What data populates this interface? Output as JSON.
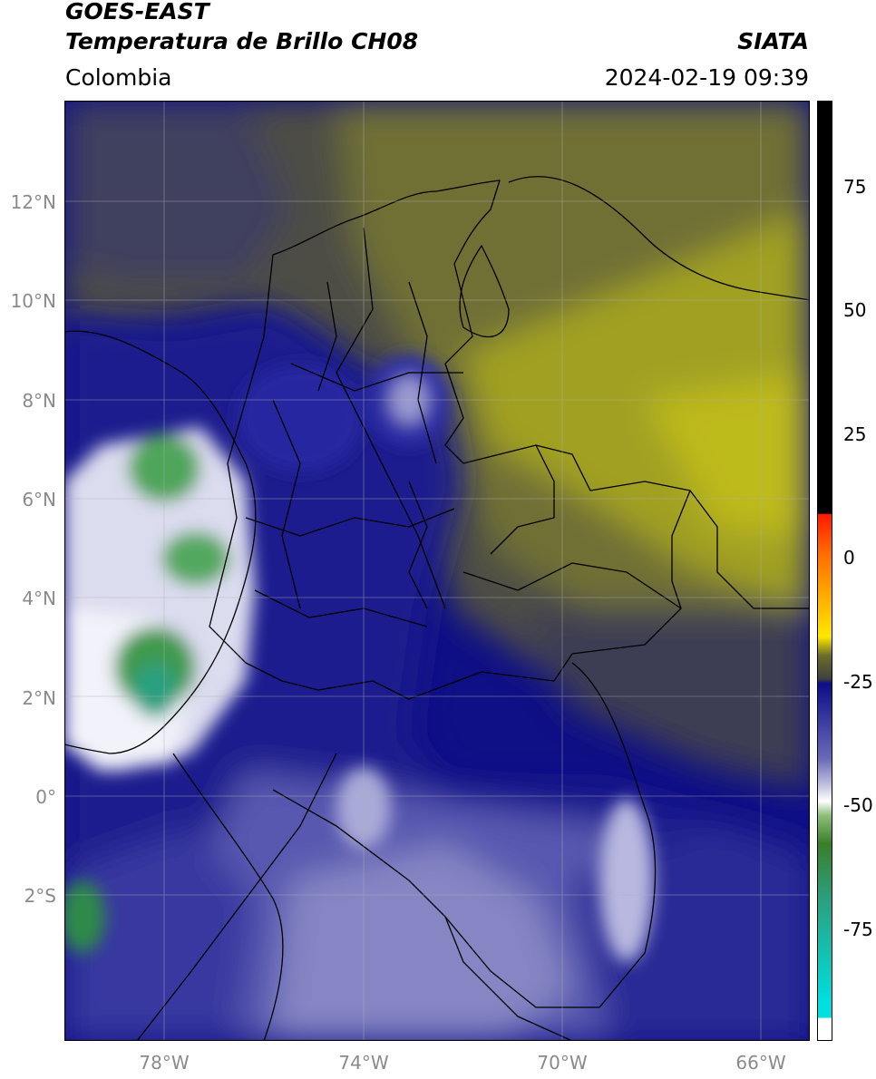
{
  "header": {
    "title_line1": "GOES-EAST",
    "title_line2": "Temperatura de Brillo CH08",
    "brand": "SIATA",
    "region": "Colombia",
    "datetime": "2024-02-19 09:39"
  },
  "map": {
    "lat_ticks": [
      "12°N",
      "10°N",
      "8°N",
      "6°N",
      "4°N",
      "2°N",
      "0°",
      "2°S"
    ],
    "lon_ticks": [
      "78°W",
      "74°W",
      "70°W",
      "66°W"
    ],
    "colors": {
      "cold_deep_blue": "#0d0d88",
      "mid_blue": "#4a4aa8",
      "light_lavender": "#aaaad6",
      "white": "#ffffff",
      "green": "#3f9a4e",
      "dark_gray": "#454545",
      "olive": "#8f8f2a",
      "yellow_olive": "#bbb81c",
      "border": "#000000",
      "grid": "#b0b0b0"
    }
  },
  "colorbar": {
    "tick_labels": [
      "75",
      "50",
      "25",
      "0",
      "-25",
      "-50",
      "-75"
    ],
    "colors": [
      "#000000",
      "#ff2200",
      "#ff8800",
      "#ffe800",
      "#6d6d2a",
      "#404040",
      "#0d0d88",
      "#8a8ac4",
      "#ffffff",
      "#3a7e2a",
      "#2aa080",
      "#00e0e0",
      "#ffffff"
    ]
  }
}
